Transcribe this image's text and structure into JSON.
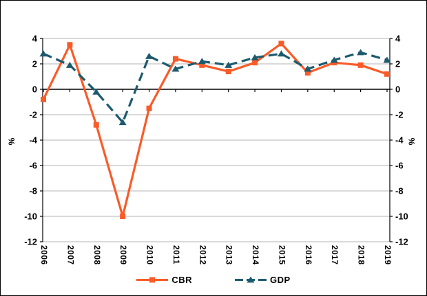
{
  "chart_data": {
    "type": "line",
    "x": [
      "2006",
      "2007",
      "2008",
      "2009",
      "2010",
      "2011",
      "2012",
      "2013",
      "2014",
      "2015",
      "2016",
      "2017",
      "2018",
      "2019"
    ],
    "series": [
      {
        "name": "CBR",
        "color": "#F95B28",
        "marker": "square",
        "line_style": "solid",
        "values": [
          -0.8,
          3.5,
          -2.8,
          -10,
          -1.5,
          2.4,
          1.9,
          1.4,
          2.1,
          3.6,
          1.3,
          2.1,
          1.9,
          1.2
        ]
      },
      {
        "name": "GDP",
        "color": "#1C5A6E",
        "marker": "triangle-up",
        "line_style": "dashed",
        "values": [
          2.8,
          1.9,
          -0.2,
          -2.6,
          2.6,
          1.6,
          2.2,
          1.9,
          2.5,
          2.8,
          1.6,
          2.3,
          2.9,
          2.3
        ]
      }
    ],
    "ylim": [
      -12,
      4
    ],
    "ytick_step": 2,
    "yticks": [
      4,
      2,
      0,
      -2,
      -4,
      -6,
      -8,
      -10,
      -12
    ],
    "ylabel_left": "%",
    "ylabel_right": "%",
    "grid": true,
    "gridline_color": "#B3B3B3",
    "axis_color": "#000000",
    "zero_line_color": "#000000",
    "legend_position": "bottom"
  }
}
